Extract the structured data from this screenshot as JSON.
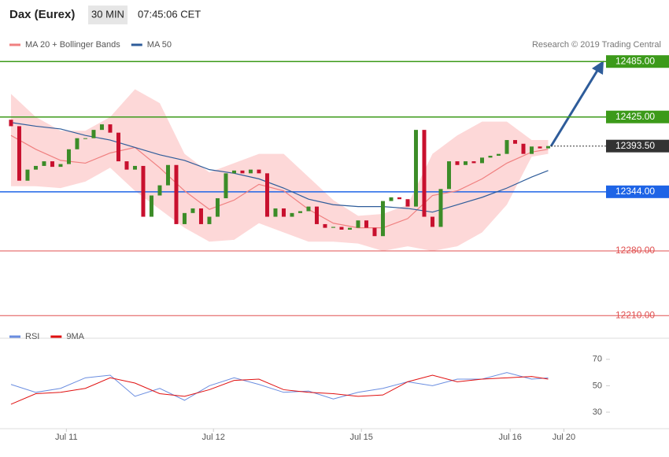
{
  "header": {
    "title": "Dax (Eurex)",
    "timeframe": "30 MIN",
    "time": "07:45:06 CET"
  },
  "legend": {
    "items": [
      {
        "name": "MA 20 + Bollinger Bands",
        "color": "#f08080"
      },
      {
        "name": "MA 50",
        "color": "#2e5c9a"
      }
    ],
    "credit": "Research © 2019 Trading Central"
  },
  "chart_data": [
    {
      "type": "candlestick",
      "xlim": [
        -1.33,
        72
      ],
      "ylim": [
        12194,
        12492
      ],
      "xticks": [
        {
          "value": 6.7,
          "label": "Jul 11"
        },
        {
          "value": 24.5,
          "label": "Jul 12"
        },
        {
          "value": 42.4,
          "label": "Jul 15"
        },
        {
          "value": 60.4,
          "label": "Jul 16"
        },
        {
          "value": 66.9,
          "label": "Jul 20"
        }
      ],
      "up_color": "#3c8c28",
      "down_color": "#c8102e",
      "open": [
        12422,
        12415,
        12356,
        12368,
        12372,
        12377,
        12371,
        12374,
        12390,
        12402,
        12402,
        12411,
        12417,
        12408,
        12377,
        12368,
        12372,
        12317,
        12340,
        12351,
        12373,
        12309,
        12321,
        12326,
        12309,
        12317,
        12337,
        12364,
        12367,
        12364,
        12368,
        12364,
        12317,
        12326,
        12317,
        12321,
        12323,
        12328,
        12309,
        12305,
        12306,
        12303,
        12305,
        12313,
        12305,
        12296,
        12334,
        12338,
        12336,
        12328,
        12411,
        12317,
        12306,
        12347,
        12377,
        12373,
        12377,
        12375,
        12381,
        12383,
        12385,
        12400,
        12396,
        12385,
        12393,
        12391
      ],
      "close": [
        12415,
        12356,
        12368,
        12372,
        12377,
        12371,
        12374,
        12390,
        12402,
        12402,
        12411,
        12417,
        12408,
        12377,
        12368,
        12372,
        12317,
        12340,
        12351,
        12373,
        12309,
        12321,
        12326,
        12309,
        12317,
        12337,
        12364,
        12367,
        12364,
        12368,
        12364,
        12317,
        12326,
        12317,
        12321,
        12323,
        12328,
        12309,
        12305,
        12306,
        12303,
        12305,
        12313,
        12305,
        12296,
        12334,
        12338,
        12336,
        12328,
        12411,
        12317,
        12306,
        12347,
        12377,
        12373,
        12377,
        12375,
        12381,
        12383,
        12385,
        12400,
        12396,
        12385,
        12393,
        12391,
        12393.5
      ],
      "overlay_x": [
        0,
        3,
        6,
        9,
        12,
        15,
        18,
        21,
        24,
        27,
        30,
        33,
        36,
        39,
        42,
        45,
        48,
        51,
        54,
        57,
        60,
        63,
        65
      ],
      "band": {
        "color": "#fdd8d8",
        "upper": [
          12450,
          12425,
          12410,
          12410,
          12425,
          12455,
          12440,
          12385,
          12365,
          12375,
          12385,
          12385,
          12360,
          12335,
          12318,
          12320,
          12330,
          12385,
          12405,
          12420,
          12420,
          12400,
          12400
        ],
        "lower": [
          12350,
          12350,
          12348,
          12355,
          12370,
          12345,
          12325,
          12305,
          12290,
          12292,
          12310,
          12300,
          12290,
          12290,
          12288,
          12280,
          12285,
          12280,
          12285,
          12300,
          12330,
          12382,
          12385
        ]
      },
      "series": [
        {
          "name": "MA 20",
          "color": "#f08080",
          "values": [
            12405,
            12390,
            12378,
            12375,
            12386,
            12392,
            12370,
            12345,
            12325,
            12335,
            12352,
            12345,
            12325,
            12310,
            12305,
            12305,
            12315,
            12340,
            12345,
            12358,
            12375,
            12387,
            12390
          ]
        },
        {
          "name": "MA 50",
          "color": "#2e5c9a",
          "values": [
            12419,
            12415,
            12412,
            12405,
            12400,
            12392,
            12384,
            12378,
            12368,
            12364,
            12358,
            12348,
            12336,
            12330,
            12328,
            12328,
            12326,
            12322,
            12330,
            12338,
            12348,
            12360,
            12367
          ]
        }
      ],
      "levels": [
        {
          "value": 12485,
          "label": "12485.00",
          "color": "#3c9a1a",
          "style": "box"
        },
        {
          "value": 12425,
          "label": "12425.00",
          "color": "#3c9a1a",
          "style": "box"
        },
        {
          "value": 12393.5,
          "label": "12393.50",
          "color": "#333333",
          "style": "dotted"
        },
        {
          "value": 12344,
          "label": "12344.00",
          "color": "#1e64e6",
          "style": "box"
        },
        {
          "value": 12280,
          "label": "12280.00",
          "color": "#e05050",
          "style": "text"
        },
        {
          "value": 12210,
          "label": "12210.00",
          "color": "#e05050",
          "style": "text"
        }
      ]
    },
    {
      "type": "line",
      "x": [
        0,
        3,
        6,
        9,
        12,
        15,
        18,
        21,
        24,
        27,
        30,
        33,
        36,
        39,
        42,
        45,
        48,
        51,
        54,
        57,
        60,
        63,
        65
      ],
      "xlim": [
        -1.33,
        72
      ],
      "ylim": [
        17.5,
        80
      ],
      "yticks": [
        30,
        50,
        70
      ],
      "series": [
        {
          "name": "RSI",
          "color": "#6a8de0",
          "values": [
            51,
            45,
            48,
            56,
            58,
            42,
            48,
            39,
            50,
            56,
            51,
            45,
            46,
            40,
            45,
            48,
            53,
            50,
            55,
            55,
            60,
            55,
            56
          ]
        },
        {
          "name": "9MA",
          "color": "#e01010",
          "values": [
            36,
            44,
            45,
            48,
            56,
            52,
            44,
            42,
            47,
            54,
            55,
            47,
            45,
            44,
            42,
            43,
            53,
            58,
            53,
            55,
            56,
            57,
            55
          ]
        }
      ]
    }
  ]
}
